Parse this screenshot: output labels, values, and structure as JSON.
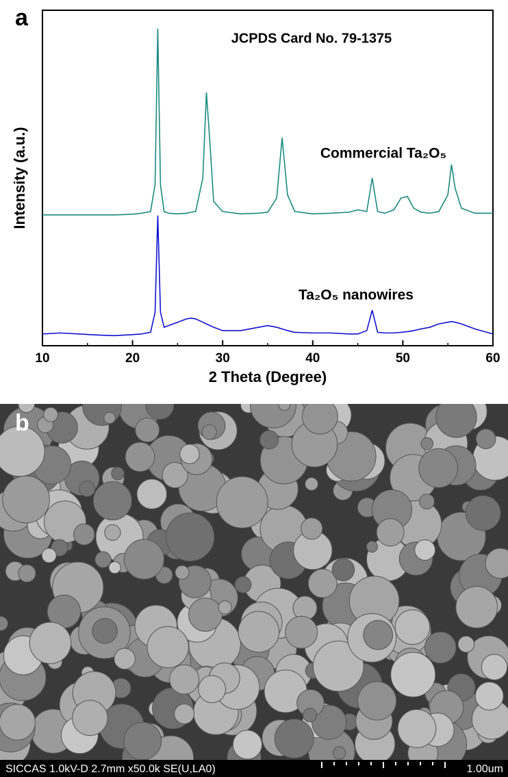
{
  "panel_labels": [
    "a",
    "b"
  ],
  "chart_data": {
    "type": "line",
    "xlabel": "2 Theta (Degree)",
    "ylabel": "Intensity (a.u.)",
    "annotations": [
      "JCPDS Card No. 79-1375"
    ],
    "x": [
      10,
      12,
      14,
      16,
      18,
      20,
      21,
      22,
      22.5,
      22.8,
      23.1,
      23.5,
      24,
      25,
      26,
      26.5,
      27,
      27.8,
      28.2,
      28.6,
      29,
      30,
      32,
      34,
      35,
      36,
      36.6,
      37.2,
      38,
      40,
      42,
      44,
      45,
      46,
      46.6,
      47.2,
      48,
      49,
      49.8,
      50.5,
      51.2,
      52,
      53,
      54,
      55,
      55.4,
      55.8,
      56.5,
      58,
      60
    ],
    "series": [
      {
        "name": "Commercial Ta₂O₅",
        "color": "#1a8a80",
        "values": [
          39,
          39,
          39,
          39,
          39,
          39.2,
          39.5,
          40,
          48,
          94.5,
          48,
          40,
          39.5,
          39.3,
          39.5,
          39.8,
          40,
          50,
          75.5,
          60,
          43,
          40,
          39.3,
          39.5,
          39.8,
          44,
          62,
          45,
          40,
          39.3,
          39.5,
          39.8,
          40.5,
          40,
          50,
          40,
          39.5,
          40.5,
          44,
          44.5,
          41,
          39.8,
          39.5,
          40,
          45,
          54,
          47,
          41,
          39.5,
          39.5
        ]
      },
      {
        "name": "Ta₂O₅ nanowires",
        "color": "#1010d0",
        "values": [
          3.5,
          3.8,
          3.5,
          3.2,
          3,
          3.3,
          3.5,
          4,
          10,
          38.8,
          10,
          5.5,
          6,
          7,
          8,
          8.2,
          8,
          7,
          6.5,
          6,
          5.5,
          4.5,
          4.5,
          5.5,
          6,
          5.5,
          5,
          4.5,
          4,
          3.8,
          3.8,
          3.5,
          3.5,
          4.5,
          10.6,
          4,
          3.8,
          3.8,
          4,
          4.2,
          4.5,
          5,
          5.5,
          6.5,
          7,
          7.2,
          7,
          6.5,
          5,
          3.5
        ]
      }
    ],
    "xlim": [
      10,
      60
    ],
    "xticks": [
      10,
      20,
      30,
      40,
      50,
      60
    ],
    "ylim": [
      0,
      100
    ]
  },
  "sem_image": {
    "caption": "SICCAS 1.0kV-D 2.7mm x50.0k SE(U,LA0)",
    "scale_bar": "1.00um"
  }
}
